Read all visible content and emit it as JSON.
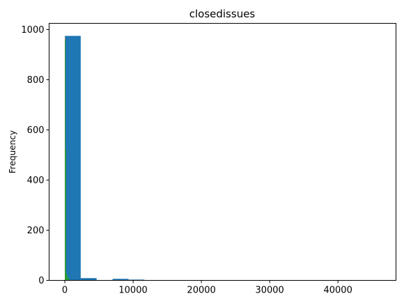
{
  "chart_data": {
    "type": "bar",
    "title": "closedissues",
    "xlabel": "",
    "ylabel": "Frequency",
    "xlim": [
      -2300,
      48500
    ],
    "ylim": [
      0,
      1025
    ],
    "xticks": [
      0,
      10000,
      20000,
      30000,
      40000
    ],
    "xtick_labels": [
      "0",
      "10000",
      "20000",
      "30000",
      "40000"
    ],
    "yticks": [
      0,
      200,
      400,
      600,
      800,
      1000
    ],
    "ytick_labels": [
      "0",
      "200",
      "400",
      "600",
      "800",
      "1000"
    ],
    "grid": false,
    "series": [
      {
        "color": "#1f77b4",
        "bins": [
          {
            "x0": 0,
            "x1": 2330,
            "count": 975
          },
          {
            "x0": 2330,
            "x1": 4660,
            "count": 9
          },
          {
            "x0": 4660,
            "x1": 6990,
            "count": 1
          },
          {
            "x0": 6990,
            "x1": 9320,
            "count": 6
          },
          {
            "x0": 9320,
            "x1": 11650,
            "count": 3
          },
          {
            "x0": 11650,
            "x1": 13980,
            "count": 0
          },
          {
            "x0": 13980,
            "x1": 16310,
            "count": 0
          },
          {
            "x0": 16310,
            "x1": 18640,
            "count": 0
          },
          {
            "x0": 18640,
            "x1": 20970,
            "count": 0
          },
          {
            "x0": 20970,
            "x1": 23300,
            "count": 0
          },
          {
            "x0": 23300,
            "x1": 25630,
            "count": 0
          },
          {
            "x0": 25630,
            "x1": 27960,
            "count": 0
          },
          {
            "x0": 27960,
            "x1": 30290,
            "count": 0
          },
          {
            "x0": 30290,
            "x1": 32620,
            "count": 0
          },
          {
            "x0": 32620,
            "x1": 34950,
            "count": 0
          },
          {
            "x0": 34950,
            "x1": 37280,
            "count": 0
          },
          {
            "x0": 37280,
            "x1": 39610,
            "count": 0
          },
          {
            "x0": 39610,
            "x1": 41940,
            "count": 0
          },
          {
            "x0": 41940,
            "x1": 44270,
            "count": 0
          },
          {
            "x0": 44270,
            "x1": 46600,
            "count": 1
          }
        ]
      },
      {
        "color": "#ff7f0e",
        "bins": [
          {
            "x0": 0,
            "x1": 60,
            "count": 970
          },
          {
            "x0": 60,
            "x1": 120,
            "count": 15
          }
        ]
      },
      {
        "color": "#2ca02c",
        "bins": [
          {
            "x0": 0,
            "x1": 90,
            "count": 960
          },
          {
            "x0": 90,
            "x1": 180,
            "count": 520
          },
          {
            "x0": 180,
            "x1": 270,
            "count": 30
          },
          {
            "x0": 270,
            "x1": 360,
            "count": 22
          },
          {
            "x0": 360,
            "x1": 450,
            "count": 15
          },
          {
            "x0": 450,
            "x1": 540,
            "count": 10
          },
          {
            "x0": 540,
            "x1": 630,
            "count": 7
          },
          {
            "x0": 630,
            "x1": 720,
            "count": 4
          }
        ]
      }
    ]
  }
}
